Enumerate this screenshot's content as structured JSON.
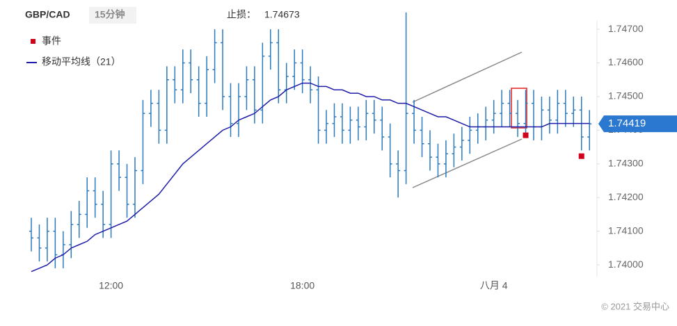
{
  "chart_data": {
    "type": "ohlc",
    "symbol": "GBP/CAD",
    "interval": "15分钟",
    "stop_loss_label": "止损：",
    "stop_loss": 1.74673,
    "categories": [
      null,
      null,
      null,
      null,
      null,
      null,
      null,
      null,
      null,
      null,
      "12:00",
      null,
      null,
      null,
      null,
      null,
      null,
      null,
      null,
      null,
      null,
      null,
      null,
      null,
      null,
      null,
      null,
      null,
      null,
      null,
      null,
      null,
      null,
      null,
      "18:00",
      null,
      null,
      null,
      null,
      null,
      null,
      null,
      null,
      null,
      null,
      null,
      null,
      null,
      null,
      null,
      null,
      null,
      null,
      null,
      null,
      null,
      null,
      null,
      "八月 4",
      null,
      null,
      null,
      null,
      null,
      null,
      null,
      null,
      null,
      null,
      null,
      null
    ],
    "open": [
      1.741,
      1.7408,
      1.7405,
      1.741,
      1.7403,
      1.7406,
      1.7412,
      1.7415,
      1.7422,
      1.7418,
      1.7412,
      1.743,
      1.7426,
      1.7418,
      1.7428,
      1.7445,
      1.7448,
      1.744,
      1.7455,
      1.7452,
      1.746,
      1.7455,
      1.7448,
      1.7458,
      1.7466,
      1.745,
      1.7442,
      1.745,
      1.7455,
      1.7446,
      1.7462,
      1.7466,
      1.7452,
      1.7456,
      1.746,
      1.7455,
      1.7452,
      1.744,
      1.7442,
      1.7444,
      1.744,
      1.7443,
      1.7441,
      1.7445,
      1.7443,
      1.7438,
      1.743,
      1.7428,
      1.7445,
      1.744,
      1.7436,
      1.7432,
      1.743,
      1.7433,
      1.7435,
      1.7437,
      1.744,
      1.7441,
      1.7443,
      1.7445,
      1.7448,
      1.7445,
      1.7442,
      1.7448,
      1.7441,
      1.7446,
      1.7443,
      1.7448,
      1.7445,
      1.7446,
      1.7438
    ],
    "high": [
      1.7414,
      1.7412,
      1.7414,
      1.7414,
      1.741,
      1.7416,
      1.7419,
      1.7426,
      1.7426,
      1.7422,
      1.7434,
      1.7434,
      1.743,
      1.7432,
      1.7449,
      1.7452,
      1.7452,
      1.7459,
      1.7459,
      1.7464,
      1.7464,
      1.7459,
      1.7462,
      1.747,
      1.747,
      1.7454,
      1.7454,
      1.7459,
      1.7459,
      1.7466,
      1.747,
      1.747,
      1.746,
      1.7464,
      1.7464,
      1.7459,
      1.7456,
      1.7446,
      1.7448,
      1.7448,
      1.7447,
      1.7447,
      1.7449,
      1.7449,
      1.7447,
      1.7442,
      1.7434,
      1.7475,
      1.7449,
      1.7444,
      1.744,
      1.7436,
      1.7437,
      1.7439,
      1.7441,
      1.7444,
      1.7445,
      1.7447,
      1.7449,
      1.7452,
      1.7452,
      1.7449,
      1.7452,
      1.7452,
      1.745,
      1.745,
      1.7452,
      1.7452,
      1.745,
      1.745,
      1.7446
    ],
    "low": [
      1.7404,
      1.7401,
      1.7401,
      1.7399,
      1.7399,
      1.7402,
      1.7408,
      1.7411,
      1.7414,
      1.7408,
      1.7408,
      1.7422,
      1.7414,
      1.7414,
      1.7424,
      1.7441,
      1.7436,
      1.7436,
      1.7448,
      1.7448,
      1.7451,
      1.7444,
      1.7444,
      1.7454,
      1.7446,
      1.7438,
      1.7438,
      1.7446,
      1.7442,
      1.7442,
      1.7458,
      1.7448,
      1.7448,
      1.7452,
      1.7451,
      1.7448,
      1.7436,
      1.7436,
      1.7438,
      1.7436,
      1.7436,
      1.7437,
      1.7437,
      1.7439,
      1.7434,
      1.7426,
      1.742,
      1.7424,
      1.7436,
      1.7432,
      1.7428,
      1.7426,
      1.7426,
      1.7429,
      1.7431,
      1.7433,
      1.7436,
      1.7437,
      1.7439,
      1.7441,
      1.7441,
      1.7438,
      1.7438,
      1.7437,
      1.7437,
      1.7439,
      1.7439,
      1.7441,
      1.7441,
      1.7434,
      1.7434
    ],
    "close": [
      1.7408,
      1.7405,
      1.741,
      1.7403,
      1.7406,
      1.7412,
      1.7415,
      1.7422,
      1.7418,
      1.7412,
      1.743,
      1.7426,
      1.7418,
      1.7428,
      1.7445,
      1.7448,
      1.744,
      1.7455,
      1.7452,
      1.746,
      1.7455,
      1.7448,
      1.7458,
      1.7466,
      1.745,
      1.7442,
      1.745,
      1.7455,
      1.7446,
      1.7462,
      1.7466,
      1.7452,
      1.7456,
      1.746,
      1.7455,
      1.7452,
      1.744,
      1.7442,
      1.7444,
      1.744,
      1.7443,
      1.7441,
      1.7445,
      1.7443,
      1.7438,
      1.743,
      1.7428,
      1.7445,
      1.744,
      1.7436,
      1.7432,
      1.743,
      1.7433,
      1.7435,
      1.7437,
      1.744,
      1.7441,
      1.7443,
      1.7445,
      1.7448,
      1.7445,
      1.7442,
      1.7448,
      1.7441,
      1.7446,
      1.7443,
      1.7448,
      1.7445,
      1.7446,
      1.7438,
      1.74419
    ],
    "color": "#2a78bd",
    "series": [
      {
        "name": "移动平均线（21）",
        "color": "#1c1ca8",
        "values": [
          1.7398,
          1.7399,
          1.74,
          1.7402,
          1.7403,
          1.7405,
          1.7406,
          1.7407,
          1.7409,
          1.741,
          1.7411,
          1.7412,
          1.7413,
          1.7415,
          1.7417,
          1.7419,
          1.7421,
          1.7424,
          1.7427,
          1.743,
          1.7432,
          1.7434,
          1.7436,
          1.7438,
          1.744,
          1.7441,
          1.7443,
          1.7444,
          1.7445,
          1.7447,
          1.7449,
          1.745,
          1.7452,
          1.7453,
          1.7454,
          1.7454,
          1.7453,
          1.7453,
          1.7452,
          1.7452,
          1.7451,
          1.7451,
          1.745,
          1.745,
          1.7449,
          1.7449,
          1.7448,
          1.7448,
          1.7447,
          1.7446,
          1.7445,
          1.7444,
          1.7444,
          1.7443,
          1.7442,
          1.7441,
          1.7441,
          1.7441,
          1.7441,
          1.7441,
          1.7441,
          1.7441,
          1.7441,
          1.7441,
          1.7441,
          1.7442,
          1.7442,
          1.7442,
          1.7442,
          1.7442,
          1.7442
        ]
      }
    ],
    "events": {
      "name": "事件",
      "color": "#d0021b",
      "values": [
        null,
        null,
        null,
        null,
        null,
        null,
        null,
        null,
        null,
        null,
        null,
        null,
        null,
        null,
        null,
        null,
        null,
        null,
        null,
        null,
        null,
        null,
        null,
        null,
        null,
        null,
        null,
        null,
        null,
        null,
        null,
        null,
        null,
        null,
        null,
        null,
        null,
        null,
        null,
        null,
        null,
        null,
        null,
        null,
        null,
        null,
        null,
        null,
        null,
        null,
        null,
        null,
        null,
        null,
        null,
        null,
        null,
        null,
        null,
        null,
        null,
        null,
        1.74385,
        null,
        null,
        null,
        null,
        null,
        null,
        1.74323,
        null
      ]
    },
    "last_price": 1.74419,
    "ylim": [
      1.73965,
      1.74725
    ],
    "yticks": [
      {
        "value": 1.74,
        "label": "1.74000"
      },
      {
        "value": 1.741,
        "label": "1.74100"
      },
      {
        "value": 1.742,
        "label": "1.74200"
      },
      {
        "value": 1.743,
        "label": "1.74300"
      },
      {
        "value": 1.744,
        "label": "1.74400"
      },
      {
        "value": 1.745,
        "label": "1.74500"
      },
      {
        "value": 1.746,
        "label": "1.74600"
      },
      {
        "value": 1.747,
        "label": "1.74700"
      }
    ],
    "copyright": "© 2021 交易中心"
  }
}
